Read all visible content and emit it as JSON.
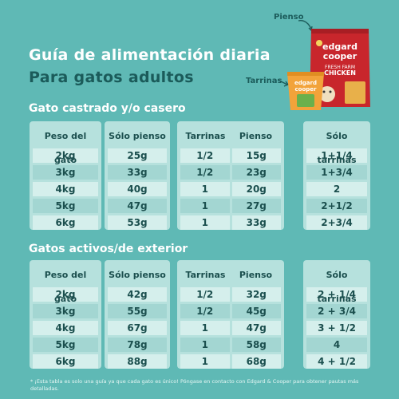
{
  "header": {
    "title": "Guía de alimentación diaria",
    "subtitle": "Para gatos adultos"
  },
  "labels": {
    "pienso": "Pienso",
    "tarrinas": "Tarrinas"
  },
  "brand": {
    "bag_text": "edgard cooper",
    "bag_sub": "FRESH FARM CHICKEN",
    "tub_text": "edgard cooper"
  },
  "colors": {
    "background": "#5fb9b5",
    "panel": "#b6e1dd",
    "bag": "#c8262c",
    "tub": "#f2a33a"
  },
  "tables": [
    {
      "section_title": "Gato castrado y/o casero",
      "col_peso": "Peso del gato",
      "col_solo_pienso": "Sólo pienso",
      "col_tarrinas": "Tarrinas",
      "col_pienso": "Pienso",
      "col_solo_tarrinas": "Sólo tarrinas",
      "rows": [
        {
          "peso": "2kg",
          "solo_pienso": "25g",
          "tarrinas": "1/2",
          "pienso": "15g",
          "solo_tarrinas": "1+1/4"
        },
        {
          "peso": "3kg",
          "solo_pienso": "33g",
          "tarrinas": "1/2",
          "pienso": "23g",
          "solo_tarrinas": "1+3/4"
        },
        {
          "peso": "4kg",
          "solo_pienso": "40g",
          "tarrinas": "1",
          "pienso": "20g",
          "solo_tarrinas": "2"
        },
        {
          "peso": "5kg",
          "solo_pienso": "47g",
          "tarrinas": "1",
          "pienso": "27g",
          "solo_tarrinas": "2+1/2"
        },
        {
          "peso": "6kg",
          "solo_pienso": "53g",
          "tarrinas": "1",
          "pienso": "33g",
          "solo_tarrinas": "2+3/4"
        }
      ]
    },
    {
      "section_title": "Gatos activos/de exterior",
      "col_peso": "Peso del gato",
      "col_solo_pienso": "Sólo pienso",
      "col_tarrinas": "Tarrinas",
      "col_pienso": "Pienso",
      "col_solo_tarrinas": "Sólo tarrinas",
      "rows": [
        {
          "peso": "2kg",
          "solo_pienso": "42g",
          "tarrinas": "1/2",
          "pienso": "32g",
          "solo_tarrinas": "2 + 1/4"
        },
        {
          "peso": "3kg",
          "solo_pienso": "55g",
          "tarrinas": "1/2",
          "pienso": "45g",
          "solo_tarrinas": "2 + 3/4"
        },
        {
          "peso": "4kg",
          "solo_pienso": "67g",
          "tarrinas": "1",
          "pienso": "47g",
          "solo_tarrinas": "3 + 1/2"
        },
        {
          "peso": "5kg",
          "solo_pienso": "78g",
          "tarrinas": "1",
          "pienso": "58g",
          "solo_tarrinas": "4"
        },
        {
          "peso": "6kg",
          "solo_pienso": "88g",
          "tarrinas": "1",
          "pienso": "68g",
          "solo_tarrinas": "4 + 1/2"
        }
      ]
    }
  ],
  "footnote": "* ¡Esta tabla es solo una guía ya que cada gato es único! Póngase en contacto con Edgard & Cooper para obtener pautas más detalladas."
}
